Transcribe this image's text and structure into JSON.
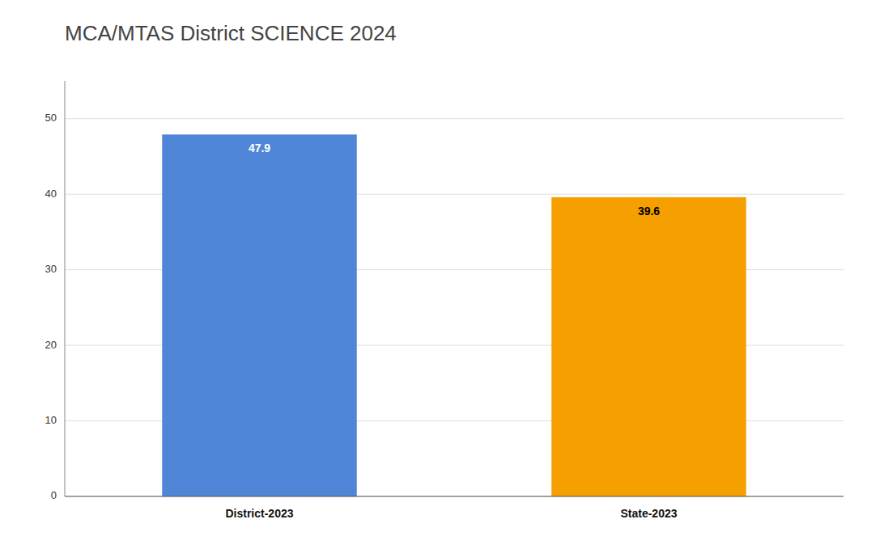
{
  "chart_data": {
    "type": "bar",
    "title": "MCA/MTAS District SCIENCE 2024",
    "categories": [
      "District-2023",
      "State-2023"
    ],
    "values": [
      47.9,
      39.6
    ],
    "colors": [
      "#4f86d8",
      "#f5a000"
    ],
    "ylim": [
      0,
      55
    ],
    "yticks": [
      0,
      10,
      20,
      30,
      40,
      50
    ],
    "grid": true,
    "data_labels": true
  }
}
